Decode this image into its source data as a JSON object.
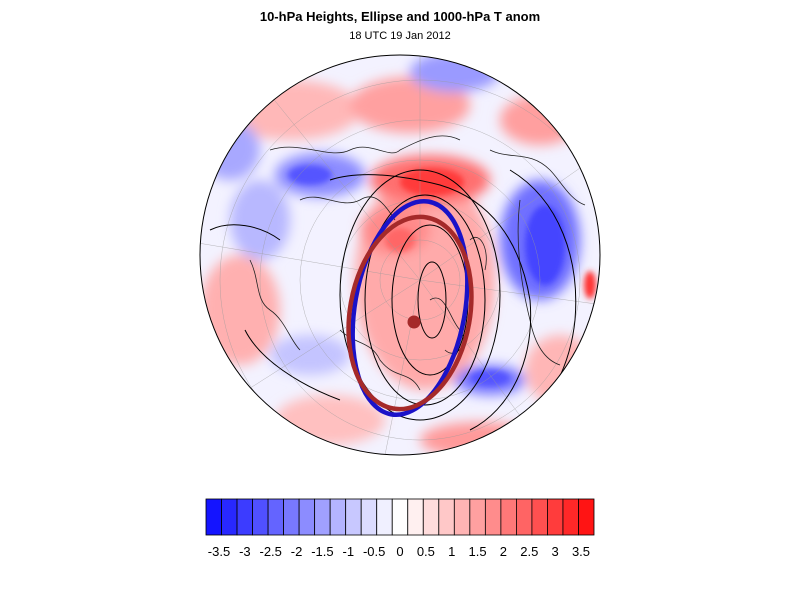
{
  "figure": {
    "title": "10-hPa Heights, Ellipse and 1000-hPa T anom",
    "subtitle": "18 UTC 19 Jan 2012"
  },
  "colors": {
    "ellipse_blue": "#1a12c8",
    "ellipse_red": "#a52a2a",
    "center_dot": "#a52a2a"
  },
  "colorbar": {
    "colors": [
      "#1414ff",
      "#2828ff",
      "#3c3cff",
      "#5050ff",
      "#6464ff",
      "#7878ff",
      "#8c8cff",
      "#a0a0ff",
      "#b4b4ff",
      "#c8c8ff",
      "#dcdcff",
      "#f0f0ff",
      "#ffffff",
      "#fff0f0",
      "#ffdcdc",
      "#ffc8c8",
      "#ffb4b4",
      "#ffa0a0",
      "#ff8c8c",
      "#ff7878",
      "#ff6464",
      "#ff5050",
      "#ff3c3c",
      "#ff2828",
      "#ff1414"
    ],
    "tick_labels": [
      "-3.5",
      "-3",
      "-2.5",
      "-2",
      "-1.5",
      "-1",
      "-0.5",
      "0",
      "0.5",
      "1",
      "1.5",
      "2",
      "2.5",
      "3",
      "3.5"
    ]
  }
}
